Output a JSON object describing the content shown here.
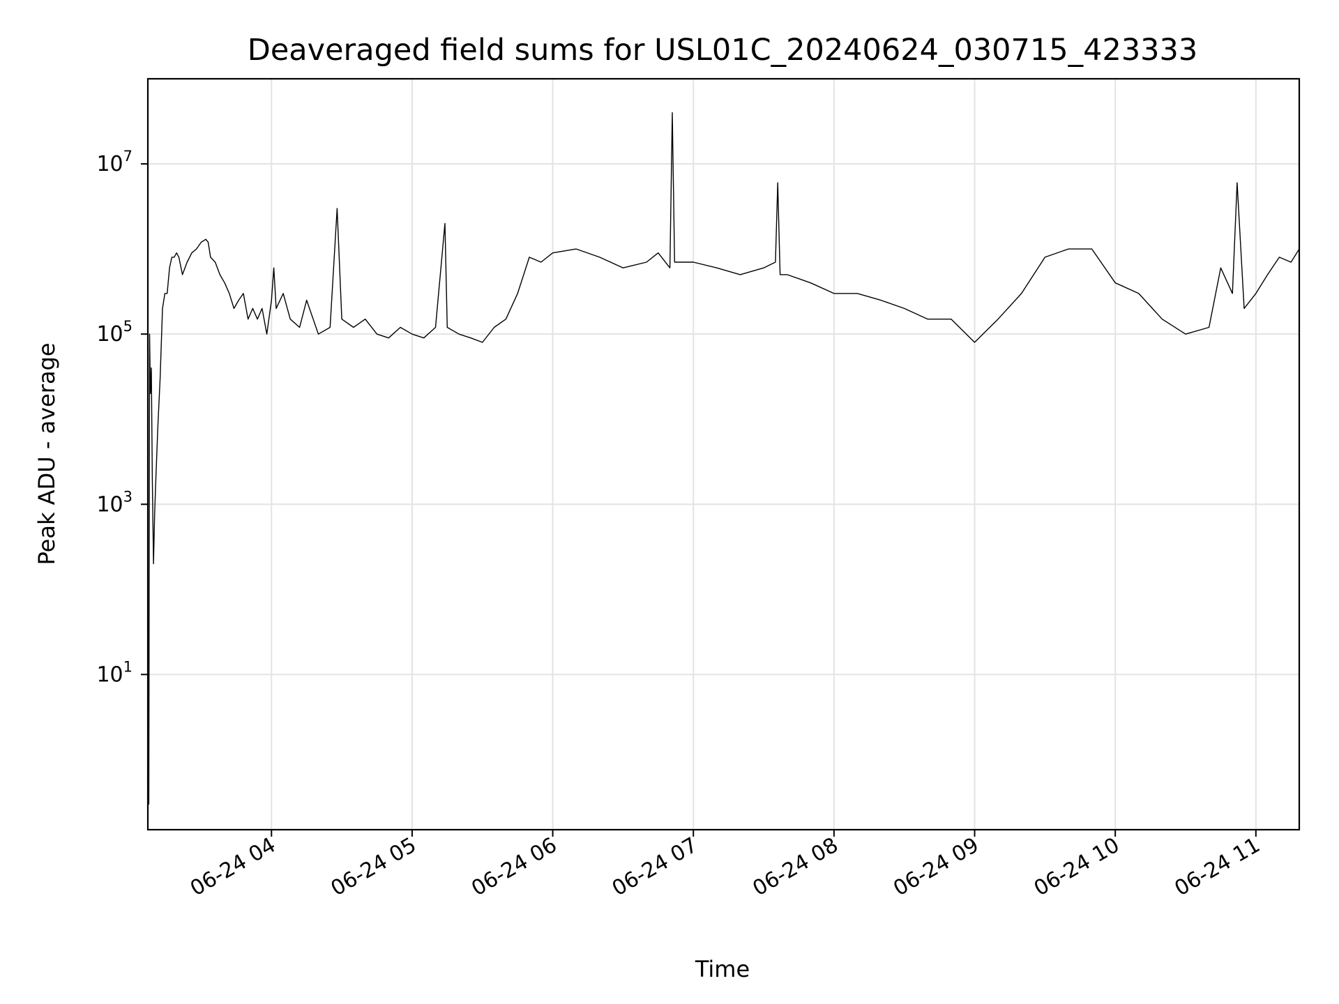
{
  "chart_data": {
    "type": "line",
    "title": "Deaveraged field sums for USL01C_20240624_030715_423333",
    "xlabel": "Time",
    "ylabel": "Peak ADU - average",
    "yscale": "log",
    "ylim": [
      0.15,
      100000000
    ],
    "xlim": [
      "06-24 03:07:15",
      "06-24 11:18:30"
    ],
    "x_ticks": [
      {
        "label": "06-24 04",
        "time": "06-24 04:00"
      },
      {
        "label": "06-24 05",
        "time": "06-24 05:00"
      },
      {
        "label": "06-24 06",
        "time": "06-24 06:00"
      },
      {
        "label": "06-24 07",
        "time": "06-24 07:00"
      },
      {
        "label": "06-24 08",
        "time": "06-24 08:00"
      },
      {
        "label": "06-24 09",
        "time": "06-24 09:00"
      },
      {
        "label": "06-24 10",
        "time": "06-24 10:00"
      },
      {
        "label": "06-24 11",
        "time": "06-24 11:00"
      }
    ],
    "y_ticks": [
      {
        "base": "10",
        "exp": "1",
        "value": 10
      },
      {
        "base": "10",
        "exp": "3",
        "value": 1000
      },
      {
        "base": "10",
        "exp": "5",
        "value": 100000
      },
      {
        "base": "10",
        "exp": "7",
        "value": 10000000
      }
    ],
    "grid": true,
    "line_color": "#000000",
    "series": [
      {
        "x": [
          "03:07:15",
          "03:07:40",
          "03:08:00",
          "03:08:20",
          "03:08:45",
          "03:09:10",
          "03:09:40",
          "03:10:10",
          "03:10:40",
          "03:11:30",
          "03:12:30",
          "03:13:30",
          "03:14:30",
          "03:15:30",
          "03:16:30",
          "03:17:30",
          "03:18:30",
          "03:19:30",
          "03:20:30",
          "03:22:00",
          "03:24:00",
          "03:26:00",
          "03:28:00",
          "03:30:00",
          "03:32:00",
          "03:33:00",
          "03:34:00",
          "03:36:00",
          "03:38:00",
          "03:40:00",
          "03:42:00",
          "03:44:00",
          "03:46:00",
          "03:48:00",
          "03:50:00",
          "03:52:00",
          "03:54:00",
          "03:56:00",
          "03:58:00",
          "04:00:00",
          "04:01:00",
          "04:02:00",
          "04:05:00",
          "04:08:00",
          "04:12:00",
          "04:15:00",
          "04:20:00",
          "04:25:00",
          "04:28:00",
          "04:30:00",
          "04:35:00",
          "04:40:00",
          "04:45:00",
          "04:50:00",
          "04:55:00",
          "05:00:00",
          "05:05:00",
          "05:10:00",
          "05:14:00",
          "05:15:00",
          "05:20:00",
          "05:25:00",
          "05:30:00",
          "05:35:00",
          "05:40:00",
          "05:45:00",
          "05:50:00",
          "05:55:00",
          "06:00:00",
          "06:10:00",
          "06:20:00",
          "06:30:00",
          "06:40:00",
          "06:45:00",
          "06:50:00",
          "06:51:00",
          "06:52:00",
          "07:00:00",
          "07:10:00",
          "07:20:00",
          "07:30:00",
          "07:35:00",
          "07:36:00",
          "07:37:00",
          "07:40:00",
          "07:50:00",
          "08:00:00",
          "08:10:00",
          "08:20:00",
          "08:30:00",
          "08:40:00",
          "08:50:00",
          "09:00:00",
          "09:10:00",
          "09:20:00",
          "09:30:00",
          "09:40:00",
          "09:50:00",
          "10:00:00",
          "10:10:00",
          "10:20:00",
          "10:30:00",
          "10:40:00",
          "10:45:00",
          "10:50:00",
          "10:52:00",
          "10:55:00",
          "11:00:00",
          "11:05:00",
          "11:10:00",
          "11:15:00",
          "11:18:30"
        ],
        "y": [
          0.3,
          0.3,
          100000,
          20000,
          40000,
          2000,
          200,
          800,
          2000,
          8000,
          30000,
          200000,
          300000,
          300000,
          600000,
          800000,
          800000,
          900000,
          800000,
          500000,
          700000,
          900000,
          1000000,
          1200000,
          1300000,
          1200000,
          800000,
          700000,
          500000,
          400000,
          300000,
          200000,
          250000,
          300000,
          150000,
          200000,
          150000,
          200000,
          100000,
          250000,
          600000,
          200000,
          300000,
          150000,
          120000,
          250000,
          100000,
          120000,
          3000000,
          150000,
          120000,
          150000,
          100000,
          90000,
          120000,
          100000,
          90000,
          120000,
          2000000,
          120000,
          100000,
          90000,
          80000,
          120000,
          150000,
          300000,
          800000,
          700000,
          900000,
          1000000,
          800000,
          600000,
          700000,
          900000,
          600000,
          40000000,
          700000,
          700000,
          600000,
          500000,
          600000,
          700000,
          6000000,
          500000,
          500000,
          400000,
          300000,
          300000,
          250000,
          200000,
          150000,
          150000,
          80000,
          150000,
          300000,
          800000,
          1000000,
          1000000,
          400000,
          300000,
          150000,
          100000,
          120000,
          600000,
          300000,
          6000000,
          200000,
          300000,
          500000,
          800000,
          700000,
          1000000
        ]
      }
    ]
  }
}
